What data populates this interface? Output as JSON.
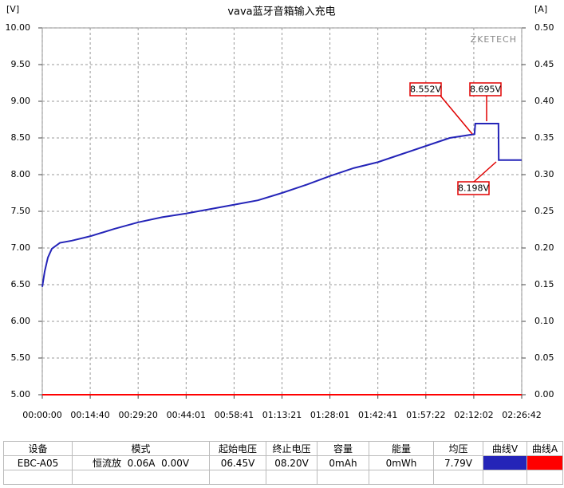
{
  "chart_data": {
    "type": "line",
    "title": "vava蓝牙音箱输入充电",
    "y_label": "[V]",
    "y2_label": "[A]",
    "watermark": "ZKETECH",
    "x": [
      0,
      44,
      103,
      176,
      323,
      543,
      880,
      1320,
      1760,
      2200,
      2640,
      3080,
      3520,
      3960,
      4400,
      4840,
      5280,
      5720,
      6160,
      6600,
      7040,
      7480,
      7935,
      7950,
      8375,
      8380,
      8800
    ],
    "series": [
      {
        "name": "曲线V",
        "color": "#2424b8",
        "values": [
          6.47,
          6.68,
          6.87,
          6.99,
          7.07,
          7.1,
          7.16,
          7.26,
          7.35,
          7.42,
          7.47,
          7.53,
          7.59,
          7.65,
          7.75,
          7.86,
          7.98,
          8.09,
          8.17,
          8.28,
          8.39,
          8.5,
          8.552,
          8.695,
          8.695,
          8.198,
          8.198
        ]
      },
      {
        "name": "曲线A",
        "color": "#ff0000",
        "axis": "y2",
        "values": [
          0,
          0,
          0,
          0,
          0,
          0,
          0,
          0,
          0,
          0,
          0,
          0,
          0,
          0,
          0,
          0,
          0,
          0,
          0,
          0,
          0,
          0,
          0,
          0,
          0,
          0,
          0
        ]
      }
    ],
    "xlim": [
      0,
      8802
    ],
    "xticks": [
      {
        "value": 0,
        "label": "00:00:00"
      },
      {
        "value": 880,
        "label": "00:14:40"
      },
      {
        "value": 1760,
        "label": "00:29:20"
      },
      {
        "value": 2641,
        "label": "00:44:01"
      },
      {
        "value": 3521,
        "label": "00:58:41"
      },
      {
        "value": 4401,
        "label": "01:13:21"
      },
      {
        "value": 5281,
        "label": "01:28:01"
      },
      {
        "value": 6161,
        "label": "01:42:41"
      },
      {
        "value": 7042,
        "label": "01:57:22"
      },
      {
        "value": 7922,
        "label": "02:12:02"
      },
      {
        "value": 8802,
        "label": "02:26:42"
      }
    ],
    "ylim": [
      5,
      10
    ],
    "yticks": [
      {
        "value": 5,
        "label": "5.00"
      },
      {
        "value": 5.5,
        "label": "5.50"
      },
      {
        "value": 6,
        "label": "6.00"
      },
      {
        "value": 6.5,
        "label": "6.50"
      },
      {
        "value": 7,
        "label": "7.00"
      },
      {
        "value": 7.5,
        "label": "7.50"
      },
      {
        "value": 8,
        "label": "8.00"
      },
      {
        "value": 8.5,
        "label": "8.50"
      },
      {
        "value": 9,
        "label": "9.00"
      },
      {
        "value": 9.5,
        "label": "9.50"
      },
      {
        "value": 10,
        "label": "10.00"
      }
    ],
    "y2lim": [
      0,
      0.5
    ],
    "y2ticks": [
      {
        "value": 0,
        "label": "0.00"
      },
      {
        "value": 0.05,
        "label": "0.05"
      },
      {
        "value": 0.1,
        "label": "0.10"
      },
      {
        "value": 0.15,
        "label": "0.15"
      },
      {
        "value": 0.2,
        "label": "0.20"
      },
      {
        "value": 0.25,
        "label": "0.25"
      },
      {
        "value": 0.3,
        "label": "0.30"
      },
      {
        "value": 0.35,
        "label": "0.35"
      },
      {
        "value": 0.4,
        "label": "0.40"
      },
      {
        "value": 0.45,
        "label": "0.45"
      },
      {
        "value": 0.5,
        "label": "0.50"
      }
    ],
    "grid": true,
    "annotations": [
      {
        "text": "8.552V"
      },
      {
        "text": "8.695V"
      },
      {
        "text": "8.198V"
      }
    ]
  },
  "table": {
    "header": [
      "设备",
      "模式",
      "起始电压",
      "终止电压",
      "容量",
      "能量",
      "均压",
      "曲线V",
      "曲线A"
    ],
    "rows": [
      [
        "EBC-A05",
        "恒流放  0.06A  0.00V",
        "06.45V",
        "08.20V",
        "0mAh",
        "0mWh",
        "7.79V"
      ]
    ]
  }
}
